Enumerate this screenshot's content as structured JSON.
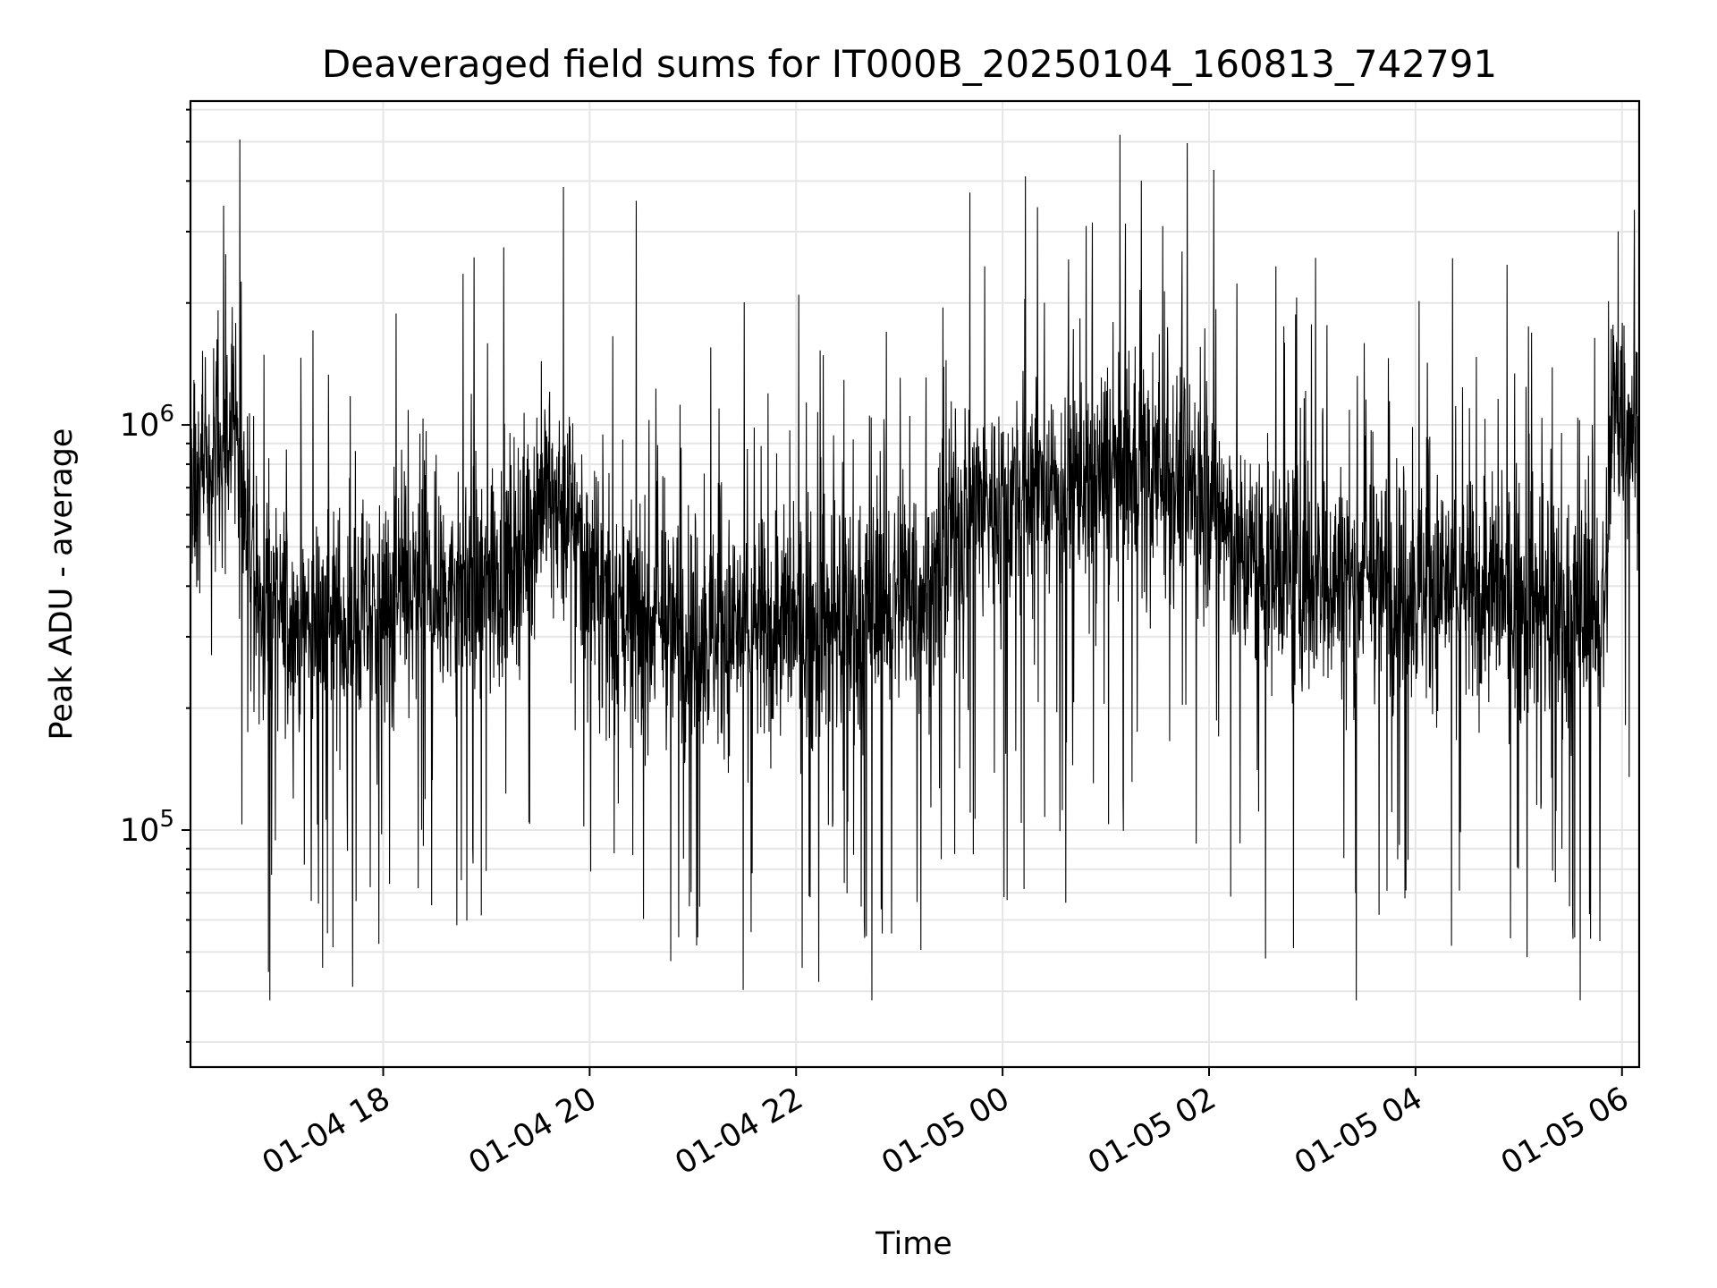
{
  "chart_data": {
    "type": "line",
    "title": "Deaveraged field sums for IT000B_20250104_160813_742791",
    "xlabel": "Time",
    "ylabel": "Peak ADU - average",
    "y_scale": "log",
    "x_range": [
      "2025-01-04 16:08",
      "2025-01-05 06:10"
    ],
    "ylim": [
      26000,
      6300000
    ],
    "x_ticks": [
      {
        "value": "2025-01-04 18:00",
        "label": "01-04 18"
      },
      {
        "value": "2025-01-04 20:00",
        "label": "01-04 20"
      },
      {
        "value": "2025-01-04 22:00",
        "label": "01-04 22"
      },
      {
        "value": "2025-01-05 00:00",
        "label": "01-05 00"
      },
      {
        "value": "2025-01-05 02:00",
        "label": "01-05 02"
      },
      {
        "value": "2025-01-05 04:00",
        "label": "01-05 04"
      },
      {
        "value": "2025-01-05 06:00",
        "label": "01-05 06"
      }
    ],
    "y_ticks": [
      {
        "value": 100000,
        "base": "10",
        "exp": "5"
      },
      {
        "value": 1000000,
        "base": "10",
        "exp": "6"
      }
    ],
    "grid": true,
    "color": "#000000",
    "series_envelope": {
      "time": [
        "2025-01-04 16:08",
        "2025-01-04 16:20",
        "2025-01-04 16:35",
        "2025-01-04 16:45",
        "2025-01-04 17:00",
        "2025-01-04 17:30",
        "2025-01-04 18:00",
        "2025-01-04 18:30",
        "2025-01-04 19:00",
        "2025-01-04 19:20",
        "2025-01-04 19:35",
        "2025-01-04 19:50",
        "2025-01-04 20:00",
        "2025-01-04 20:30",
        "2025-01-04 21:00",
        "2025-01-04 21:30",
        "2025-01-04 22:00",
        "2025-01-04 22:30",
        "2025-01-04 23:00",
        "2025-01-04 23:20",
        "2025-01-04 23:35",
        "2025-01-05 00:00",
        "2025-01-05 00:30",
        "2025-01-05 01:00",
        "2025-01-05 01:30",
        "2025-01-05 02:00",
        "2025-01-05 02:15",
        "2025-01-05 02:30",
        "2025-01-05 03:00",
        "2025-01-05 03:30",
        "2025-01-05 04:00",
        "2025-01-05 04:30",
        "2025-01-05 05:00",
        "2025-01-05 05:30",
        "2025-01-05 05:50",
        "2025-01-05 05:55",
        "2025-01-05 06:10"
      ],
      "median": [
        750000,
        850000,
        950000,
        400000,
        330000,
        320000,
        340000,
        380000,
        400000,
        500000,
        700000,
        600000,
        400000,
        330000,
        310000,
        300000,
        320000,
        330000,
        370000,
        400000,
        600000,
        650000,
        700000,
        750000,
        770000,
        700000,
        500000,
        450000,
        420000,
        420000,
        400000,
        380000,
        380000,
        340000,
        350000,
        1100000,
        1000000
      ]
    }
  }
}
